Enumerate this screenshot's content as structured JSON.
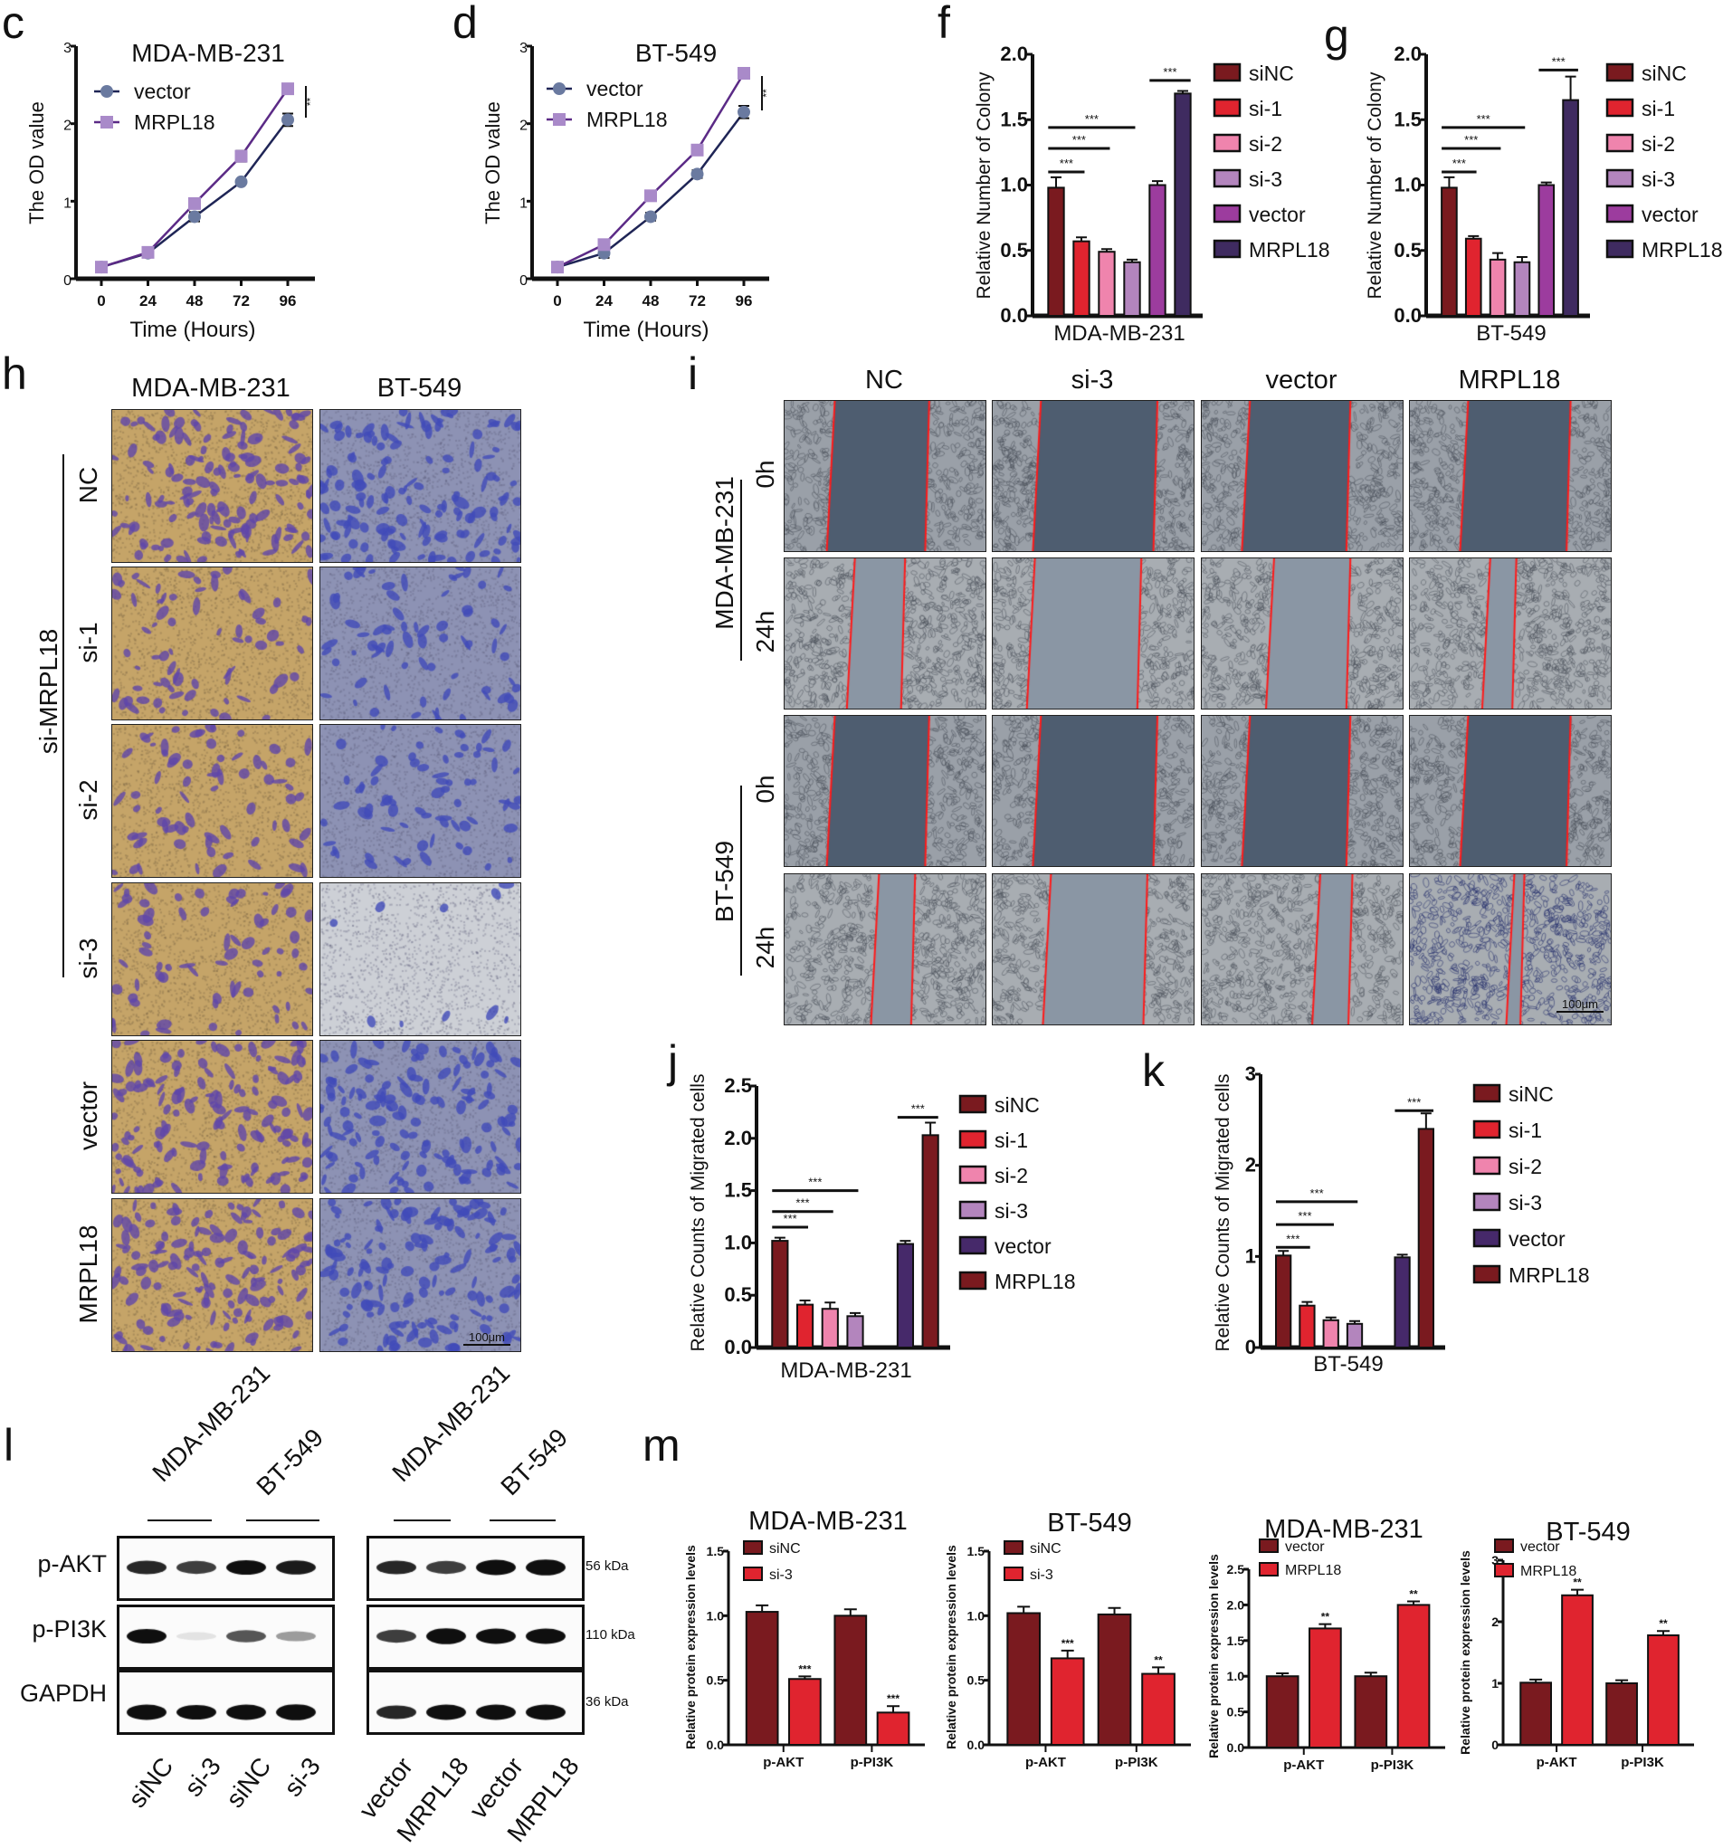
{
  "panel_labels": {
    "c": "c",
    "d": "d",
    "f": "f",
    "g": "g",
    "h": "h",
    "i": "i",
    "j": "j",
    "k": "k",
    "l": "l",
    "m": "m"
  },
  "colors": {
    "siNC": "#7a1a1f",
    "si1": "#e0242f",
    "si2": "#ef84ad",
    "si3": "#b385bd",
    "vector_fg": "#9c3c9e",
    "mrpl18_fg": "#3f2b60",
    "vector_jk": "#46296a",
    "mrpl18_jk": "#7a1a1f",
    "m_dark": "#7a1a1f",
    "m_red": "#e0242f"
  },
  "chart_data": [
    {
      "id": "c",
      "type": "line",
      "title": "MDA-MB-231",
      "xlabel": "Time (Hours)",
      "ylabel": "The OD value",
      "x": [
        0,
        24,
        48,
        72,
        96
      ],
      "xticks": [
        "0",
        "24",
        "48",
        "72",
        "96"
      ],
      "yticks": [
        "0",
        "1",
        "2",
        "3"
      ],
      "ylim": [
        0,
        3
      ],
      "significance": "**",
      "series": [
        {
          "name": "vector",
          "color": "#1f2556",
          "marker": "circle",
          "marker_color": "#6a7aa0",
          "values": [
            0.15,
            0.33,
            0.8,
            1.25,
            2.05
          ],
          "errors": [
            0.05,
            0.05,
            0.06,
            0.02,
            0.08
          ]
        },
        {
          "name": "MRPL18",
          "color": "#5b2a86",
          "marker": "square",
          "marker_color": "#a98ac9",
          "values": [
            0.15,
            0.34,
            0.97,
            1.58,
            2.45
          ],
          "errors": [
            0.05,
            0.05,
            0.06,
            0.07,
            0.03
          ]
        }
      ]
    },
    {
      "id": "d",
      "type": "line",
      "title": "BT-549",
      "xlabel": "Time (Hours)",
      "ylabel": "The OD value",
      "x": [
        0,
        24,
        48,
        72,
        96
      ],
      "xticks": [
        "0",
        "24",
        "48",
        "72",
        "96"
      ],
      "yticks": [
        "0",
        "1",
        "2",
        "3"
      ],
      "ylim": [
        0,
        3
      ],
      "significance": "**",
      "series": [
        {
          "name": "vector",
          "color": "#1f2556",
          "marker": "circle",
          "marker_color": "#6a7aa0",
          "values": [
            0.15,
            0.33,
            0.8,
            1.35,
            2.15
          ],
          "errors": [
            0.05,
            0.06,
            0.05,
            0.05,
            0.08
          ]
        },
        {
          "name": "MRPL18",
          "color": "#5b2a86",
          "marker": "square",
          "marker_color": "#a98ac9",
          "values": [
            0.15,
            0.44,
            1.07,
            1.66,
            2.65
          ],
          "errors": [
            0.05,
            0.06,
            0.05,
            0.02,
            0.05
          ]
        }
      ]
    },
    {
      "id": "f",
      "type": "bar",
      "xlabel": "MDA-MB-231",
      "ylabel": "Relative Number of  Colony",
      "yticks": [
        "0.0",
        "0.5",
        "1.0",
        "1.5",
        "2.0"
      ],
      "ylim": [
        0,
        2
      ],
      "categories": [
        "siNC",
        "si-1",
        "si-2",
        "si-3",
        "vector",
        "MRPL18"
      ],
      "colors": [
        "#7a1a1f",
        "#e0242f",
        "#ef84ad",
        "#b385bd",
        "#9c3c9e",
        "#3f2b60"
      ],
      "values": [
        0.98,
        0.57,
        0.49,
        0.41,
        1.0,
        1.7
      ],
      "errors": [
        0.08,
        0.03,
        0.02,
        0.02,
        0.03,
        0.02
      ],
      "comparisons": [
        {
          "from": 0,
          "to": 1,
          "label": "***"
        },
        {
          "from": 0,
          "to": 2,
          "label": "***"
        },
        {
          "from": 0,
          "to": 3,
          "label": "***"
        },
        {
          "from": 4,
          "to": 5,
          "label": "***"
        }
      ]
    },
    {
      "id": "g",
      "type": "bar",
      "xlabel": "BT-549",
      "ylabel": "Relative Number of  Colony",
      "yticks": [
        "0.0",
        "0.5",
        "1.0",
        "1.5",
        "2.0"
      ],
      "ylim": [
        0,
        2
      ],
      "categories": [
        "siNC",
        "si-1",
        "si-2",
        "si-3",
        "vector",
        "MRPL18"
      ],
      "colors": [
        "#7a1a1f",
        "#e0242f",
        "#ef84ad",
        "#b385bd",
        "#9c3c9e",
        "#3f2b60"
      ],
      "values": [
        0.98,
        0.59,
        0.43,
        0.41,
        1.0,
        1.65
      ],
      "errors": [
        0.08,
        0.02,
        0.05,
        0.04,
        0.02,
        0.18
      ],
      "comparisons": [
        {
          "from": 0,
          "to": 1,
          "label": "***"
        },
        {
          "from": 0,
          "to": 2,
          "label": "***"
        },
        {
          "from": 0,
          "to": 3,
          "label": "***"
        },
        {
          "from": 4,
          "to": 5,
          "label": "***"
        }
      ]
    },
    {
      "id": "j",
      "type": "bar",
      "xlabel": "MDA-MB-231",
      "ylabel": "Relative Counts of  Migrated cells",
      "yticks": [
        "0.0",
        "0.5",
        "1.0",
        "1.5",
        "2.0",
        "2.5"
      ],
      "ylim": [
        0,
        2.5
      ],
      "categories": [
        "siNC",
        "si-1",
        "si-2",
        "si-3",
        "vector",
        "MRPL18"
      ],
      "colors": [
        "#7a1a1f",
        "#e0242f",
        "#ef84ad",
        "#b385bd",
        "#46296a",
        "#7a1a1f"
      ],
      "values": [
        1.02,
        0.41,
        0.37,
        0.3,
        0.99,
        2.03
      ],
      "errors": [
        0.03,
        0.04,
        0.06,
        0.03,
        0.03,
        0.12
      ],
      "comparisons": [
        {
          "from": 0,
          "to": 1,
          "label": "***"
        },
        {
          "from": 0,
          "to": 2,
          "label": "***"
        },
        {
          "from": 0,
          "to": 3,
          "label": "***"
        },
        {
          "from": 4,
          "to": 5,
          "label": "***"
        }
      ]
    },
    {
      "id": "k",
      "type": "bar",
      "xlabel": "BT-549",
      "ylabel": "Relative Counts of  Migrated cells",
      "yticks": [
        "0",
        "1",
        "2",
        "3"
      ],
      "ylim": [
        0,
        3
      ],
      "categories": [
        "siNC",
        "si-1",
        "si-2",
        "si-3",
        "vector",
        "MRPL18"
      ],
      "colors": [
        "#7a1a1f",
        "#e0242f",
        "#ef84ad",
        "#b385bd",
        "#46296a",
        "#7a1a1f"
      ],
      "values": [
        1.01,
        0.46,
        0.3,
        0.26,
        0.99,
        2.4
      ],
      "errors": [
        0.05,
        0.04,
        0.03,
        0.03,
        0.03,
        0.17
      ],
      "comparisons": [
        {
          "from": 0,
          "to": 1,
          "label": "***"
        },
        {
          "from": 0,
          "to": 2,
          "label": "***"
        },
        {
          "from": 0,
          "to": 3,
          "label": "***"
        },
        {
          "from": 4,
          "to": 5,
          "label": "***"
        }
      ]
    },
    {
      "id": "m1",
      "type": "grouped-bar",
      "title": "MDA-MB-231",
      "ylabel": "Relative protein expression levels",
      "categories": [
        "p-AKT",
        "p-PI3K"
      ],
      "yticks": [
        "0.0",
        "0.5",
        "1.0",
        "1.5"
      ],
      "ylim": [
        0,
        1.5
      ],
      "series": [
        {
          "name": "siNC",
          "color": "#7a1a1f",
          "values": [
            1.03,
            1.0
          ],
          "errors": [
            0.05,
            0.05
          ]
        },
        {
          "name": "si-3",
          "color": "#e0242f",
          "values": [
            0.51,
            0.25
          ],
          "errors": [
            0.02,
            0.05
          ]
        }
      ],
      "significance": [
        "***",
        "***"
      ]
    },
    {
      "id": "m2",
      "type": "grouped-bar",
      "title": "BT-549",
      "ylabel": "Relative protein expression levels",
      "categories": [
        "p-AKT",
        "p-PI3K"
      ],
      "yticks": [
        "0.0",
        "0.5",
        "1.0",
        "1.5"
      ],
      "ylim": [
        0,
        1.5
      ],
      "series": [
        {
          "name": "siNC",
          "color": "#7a1a1f",
          "values": [
            1.02,
            1.01
          ],
          "errors": [
            0.05,
            0.05
          ]
        },
        {
          "name": "si-3",
          "color": "#e0242f",
          "values": [
            0.67,
            0.55
          ],
          "errors": [
            0.06,
            0.05
          ]
        }
      ],
      "significance": [
        "***",
        "**"
      ]
    },
    {
      "id": "m3",
      "type": "grouped-bar",
      "title": "MDA-MB-231",
      "ylabel": "Relative protein expression levels",
      "categories": [
        "p-AKT",
        "p-PI3K"
      ],
      "yticks": [
        "0.0",
        "0.5",
        "1.0",
        "1.5",
        "2.0",
        "2.5"
      ],
      "ylim": [
        0,
        2.5
      ],
      "series": [
        {
          "name": "vector",
          "color": "#7a1a1f",
          "values": [
            1.0,
            1.0
          ],
          "errors": [
            0.04,
            0.05
          ]
        },
        {
          "name": "MRPL18",
          "color": "#e0242f",
          "values": [
            1.67,
            2.0
          ],
          "errors": [
            0.06,
            0.05
          ]
        }
      ],
      "significance": [
        "**",
        "**"
      ]
    },
    {
      "id": "m4",
      "type": "grouped-bar",
      "title": "BT-549",
      "ylabel": "Relative protein expression levels",
      "categories": [
        "p-AKT",
        "p-PI3K"
      ],
      "yticks": [
        "0",
        "1",
        "2",
        "3"
      ],
      "ylim": [
        0,
        3
      ],
      "series": [
        {
          "name": "vector",
          "color": "#7a1a1f",
          "values": [
            1.01,
            1.0
          ],
          "errors": [
            0.05,
            0.05
          ]
        },
        {
          "name": "MRPL18",
          "color": "#e0242f",
          "values": [
            2.43,
            1.78
          ],
          "errors": [
            0.09,
            0.07
          ]
        }
      ],
      "significance": [
        "**",
        "**"
      ]
    }
  ],
  "transwell": {
    "columns": [
      "MDA-MB-231",
      "BT-549"
    ],
    "rows": [
      "NC",
      "si-1",
      "si-2",
      "si-3",
      "vector",
      "MRPL18"
    ],
    "group_label": "si-MRPL18",
    "scale_bar": "100μm"
  },
  "wound": {
    "columns": [
      "NC",
      "si-3",
      "vector",
      "MRPL18"
    ],
    "cell_lines": [
      {
        "name": "MDA-MB-231",
        "times": [
          "0h",
          "24h"
        ]
      },
      {
        "name": "BT-549",
        "times": [
          "0h",
          "24h"
        ]
      }
    ],
    "scale_bar": "100μm"
  },
  "western": {
    "left": {
      "cells": [
        "MDA-MB-231",
        "BT-549"
      ],
      "lanes": [
        "siNC",
        "si-3",
        "siNC",
        "si-3"
      ]
    },
    "right": {
      "cells": [
        "MDA-MB-231",
        "BT-549"
      ],
      "lanes": [
        "vector",
        "MRPL18",
        "vector",
        "MRPL18"
      ]
    },
    "proteins": [
      "p-AKT",
      "p-PI3K",
      "GAPDH"
    ],
    "sizes": [
      "56 kDa",
      "110 kDa",
      "36 kDa"
    ]
  }
}
